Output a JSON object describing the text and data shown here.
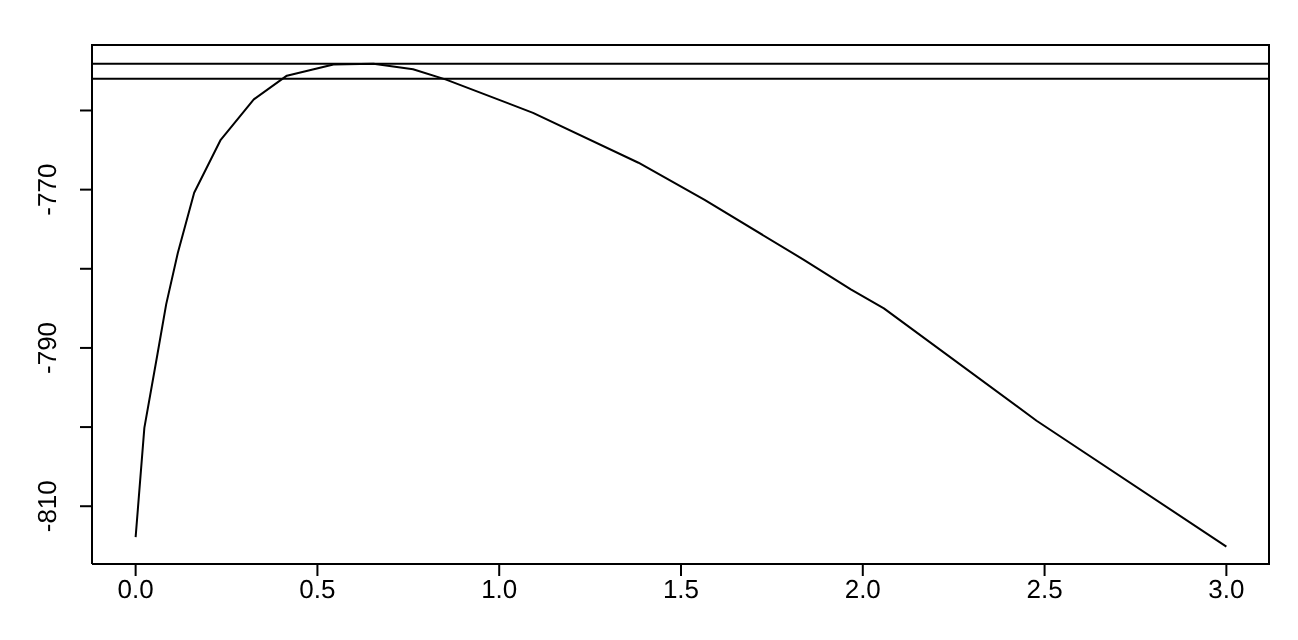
{
  "chart_data": {
    "type": "line",
    "x": [
      0,
      0.024,
      0.06,
      0.084,
      0.116,
      0.161,
      0.234,
      0.325,
      0.416,
      0.544,
      0.654,
      0.763,
      0.854,
      1.093,
      1.383,
      1.565,
      1.839,
      1.967,
      2.058,
      2.478,
      3.0
    ],
    "series": [
      {
        "color": "#000000",
        "values": [
          -813.9,
          -800.1,
          -790.8,
          -784.5,
          -778.0,
          -770.4,
          -763.7,
          -758.6,
          -755.6,
          -754.2,
          -754.1,
          -754.8,
          -756.1,
          -760.3,
          -766.6,
          -771.3,
          -778.9,
          -782.6,
          -785.0,
          -799.2,
          -815.1
        ]
      }
    ],
    "xlim": [
      -0.12,
      3.12
    ],
    "xticks": [
      {
        "value": 0,
        "label": "0.0"
      },
      0.5,
      {
        "value": 1,
        "label": "1.0"
      },
      1.5,
      {
        "value": 2,
        "label": "2.0"
      },
      2.5,
      {
        "value": 3,
        "label": "3.0"
      }
    ],
    "ylim": [
      -817.3,
      -751.6
    ],
    "yticks": [
      {
        "value": -810,
        "label": "-810"
      },
      {
        "value": -800,
        "label": null
      },
      {
        "value": -790,
        "label": "-790"
      },
      {
        "value": -780,
        "label": null
      },
      {
        "value": -770,
        "label": "-770"
      },
      {
        "value": -760,
        "label": null
      }
    ],
    "ref_lines": [
      {
        "axis": "y",
        "value": -754.1,
        "color": "#000000"
      },
      {
        "axis": "y",
        "value": -756.0,
        "color": "#000000"
      }
    ],
    "marker": "none",
    "line_style": "solid",
    "grid": false,
    "legend": false
  }
}
